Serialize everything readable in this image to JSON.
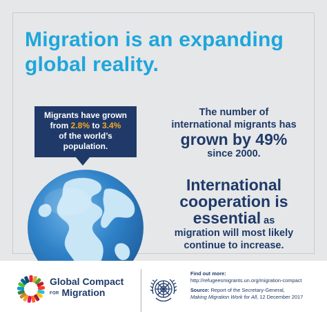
{
  "headline": {
    "line1": "Migration is an expanding",
    "line2": "global reality."
  },
  "bubble": {
    "line1": "Migrants have grown",
    "from_word": "from ",
    "from_value": "2.8%",
    "to_word": " to ",
    "to_value": "3.4%",
    "line3": "of the world’s",
    "line4": "population."
  },
  "stat": {
    "line1": "The number of",
    "line2": "international migrants has",
    "line3": "grown by 49%",
    "line4": "since 2000."
  },
  "cooperation": {
    "line1": "International",
    "line2": "cooperation is",
    "line3_bold": "essential",
    "line3_rest": " as",
    "line4": "migration will most likely",
    "line5": "continue to increase."
  },
  "footer": {
    "gcm_line1": "Global Compact",
    "gcm_for": "FOR",
    "gcm_line2": "Migration",
    "find_out_label": "Find out more:",
    "find_out_url": "http://refugeesmigrants.un.org/migration-compact",
    "source_label": "Source:",
    "source_text": " Report of the Secretary-General,",
    "source_title": "Making Migration Work for All",
    "source_date": ", 12 December 2017"
  },
  "colors": {
    "headline_blue": "#1ea6dc",
    "navy": "#1f3a69",
    "orange_highlight": "#f7a823",
    "background": "#e6e7e8"
  },
  "icons": {
    "globe": "earth-globe-icon",
    "gcm_logo": "gcm-color-wheel-logo",
    "un_emblem": "un-emblem-icon"
  }
}
